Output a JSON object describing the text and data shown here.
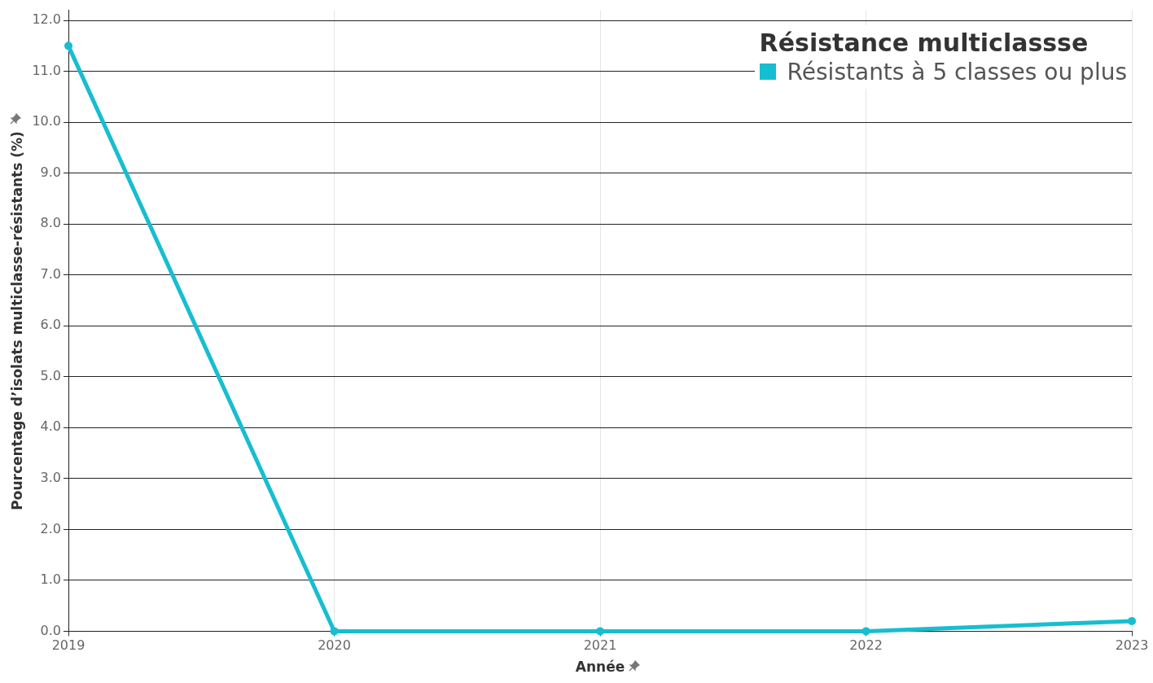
{
  "chart_data": {
    "type": "line",
    "legend_title": "Résistance multiclassse",
    "xlabel": "Année",
    "ylabel": "Pourcentage d’isolats multiclasse-résistants (%)",
    "x": [
      2019,
      2020,
      2021,
      2022,
      2023
    ],
    "series": [
      {
        "name": "Résistants à 5 classes ou plus",
        "color": "#17becf",
        "values": [
          11.5,
          0,
          0,
          0,
          0.2
        ]
      }
    ],
    "xlim": [
      2019,
      2023
    ],
    "xticks": [
      2019,
      2020,
      2021,
      2022,
      2023
    ],
    "ylim": [
      0,
      12.2
    ],
    "yticks": [
      {
        "value": 0,
        "label": "0.0"
      },
      {
        "value": 1,
        "label": "1.0"
      },
      {
        "value": 2,
        "label": "2.0"
      },
      {
        "value": 3,
        "label": "3.0"
      },
      {
        "value": 4,
        "label": "4.0"
      },
      {
        "value": 5,
        "label": "5.0"
      },
      {
        "value": 6,
        "label": "6.0"
      },
      {
        "value": 7,
        "label": "7.0"
      },
      {
        "value": 8,
        "label": "8.0"
      },
      {
        "value": 9,
        "label": "9.0"
      },
      {
        "value": 10,
        "label": "10.0"
      },
      {
        "value": 11,
        "label": "11.0"
      },
      {
        "value": 12,
        "label": "12.0"
      }
    ],
    "grid": true,
    "legend": "top right",
    "marker": "circle",
    "line_style": "solid"
  }
}
